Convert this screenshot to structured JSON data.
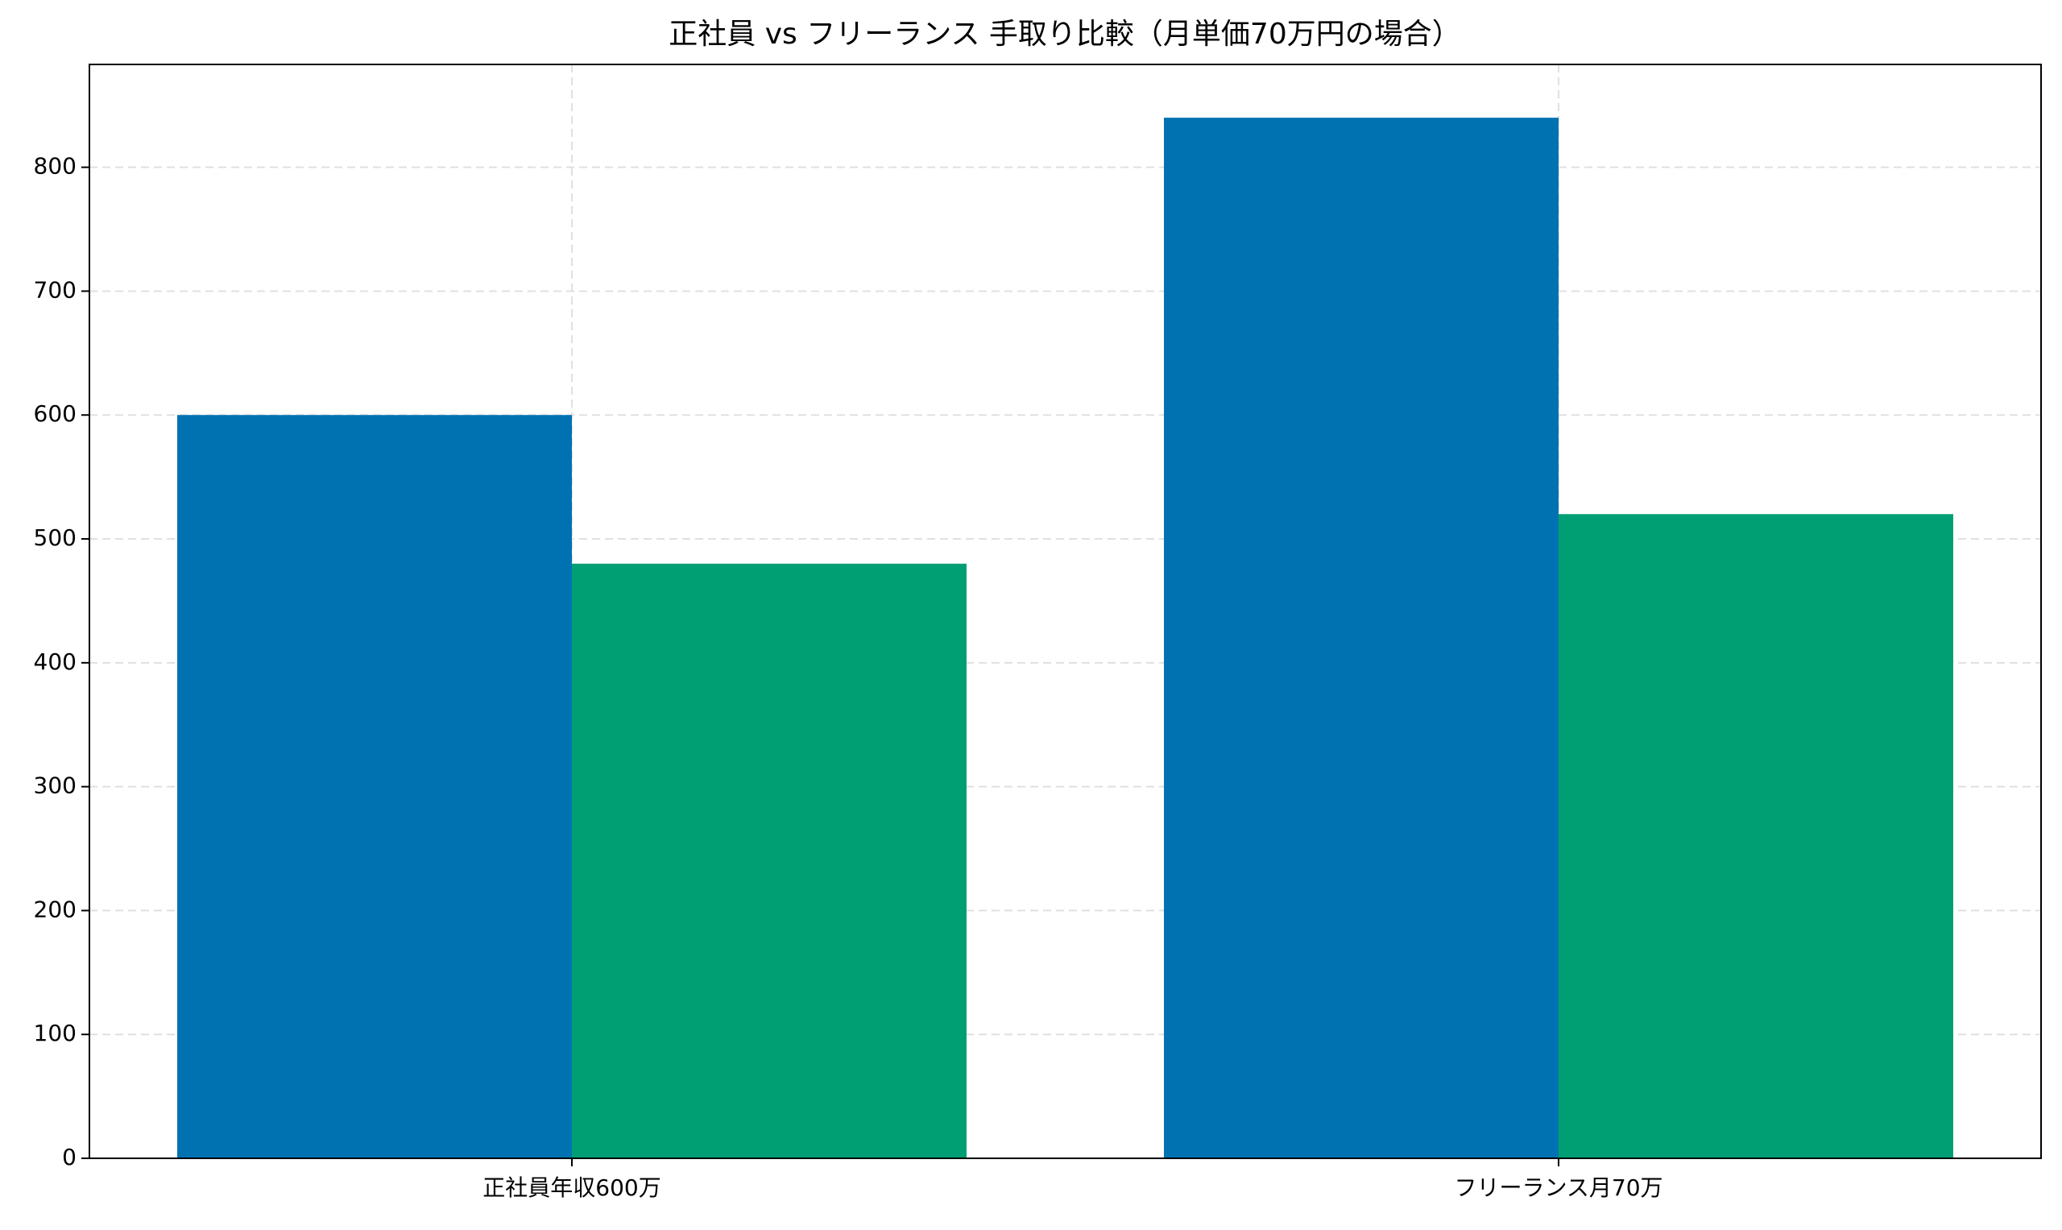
{
  "chart_data": {
    "type": "bar",
    "title": "正社員 vs フリーランス 手取り比較（月単価70万円の場合）",
    "categories": [
      "正社員年収600万",
      "フリーランス月70万"
    ],
    "series": [
      {
        "color": "#0072b2",
        "values": [
          600,
          840
        ]
      },
      {
        "color": "#009e73",
        "values": [
          480,
          520
        ]
      }
    ],
    "ylim": [
      0,
      883
    ],
    "yticks": [
      0,
      100,
      200,
      300,
      400,
      500,
      600,
      700,
      800
    ],
    "grid": true
  }
}
